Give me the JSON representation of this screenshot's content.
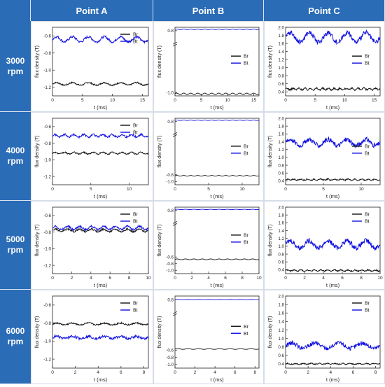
{
  "columns": [
    "Point A",
    "Point B",
    "Point C"
  ],
  "rows": [
    {
      "label": [
        "3000",
        "rpm"
      ]
    },
    {
      "label": [
        "4000",
        "rpm"
      ]
    },
    {
      "label": [
        "5000",
        "rpm"
      ]
    },
    {
      "label": [
        "6000",
        "rpm"
      ]
    }
  ],
  "chart_data": [
    {
      "type": "line",
      "point": "Point A",
      "speed": "3000 rpm",
      "xlabel": "t (ms)",
      "ylabel": "flux density (T)",
      "xlim": [
        0,
        16
      ],
      "ylim": [
        -1.3,
        -0.5
      ],
      "xticks": [
        0,
        5,
        10,
        15
      ],
      "yticks": [
        -0.6,
        -0.8,
        -1.0,
        -1.2
      ],
      "ytick_labels": [
        "-0.6",
        "-0.8",
        "-1.0",
        "-1.2"
      ],
      "legend": "top-right",
      "series": [
        {
          "name": "Br",
          "color": "#111111",
          "mean": -1.16,
          "amplitude": 0.015,
          "cycles": 6,
          "noise": 0.008
        },
        {
          "name": "Bt",
          "color": "#1010e0",
          "mean": -0.64,
          "amplitude": 0.03,
          "cycles": 6,
          "noise": 0.014
        }
      ]
    },
    {
      "type": "line",
      "point": "Point B",
      "speed": "3000 rpm",
      "xlabel": "t (ms)",
      "ylabel": "flux density (T)",
      "xlim": [
        0,
        16
      ],
      "ylim": [
        -1.1,
        0.9
      ],
      "xticks": [
        0,
        5,
        10,
        15
      ],
      "yticks": [
        0.8,
        -1.0
      ],
      "ytick_labels": [
        "0.8",
        "-1.0"
      ],
      "axis_break": true,
      "legend": "middle-right",
      "series": [
        {
          "name": "Br",
          "color": "#111111",
          "mean": -1.04,
          "amplitude": 0.02,
          "cycles": 12,
          "noise": 0.0
        },
        {
          "name": "Bt",
          "color": "#1010e0",
          "mean": 0.84,
          "amplitude": 0.008,
          "cycles": 12,
          "noise": 0.0
        }
      ]
    },
    {
      "type": "line",
      "point": "Point C",
      "speed": "3000 rpm",
      "xlabel": "t (ms)",
      "ylabel": "flux density (T)",
      "xlim": [
        0,
        16
      ],
      "ylim": [
        0.3,
        2.0
      ],
      "xticks": [
        0,
        5,
        10,
        15
      ],
      "yticks": [
        2.0,
        1.8,
        1.6,
        1.4,
        1.2,
        1.0,
        0.8,
        0.6,
        0.4
      ],
      "ytick_labels": [
        "2.0",
        "1.8",
        "1.6",
        "1.4",
        "1.2",
        "1.0",
        "0.8",
        "0.6",
        "0.4"
      ],
      "legend": "middle-right",
      "series": [
        {
          "name": "Br",
          "color": "#111111",
          "mean": 0.47,
          "amplitude": 0.02,
          "cycles": 16,
          "noise": 0.02
        },
        {
          "name": "Bt",
          "color": "#1010e0",
          "mean": 1.75,
          "amplitude": 0.12,
          "cycles": 5,
          "noise": 0.06
        }
      ]
    },
    {
      "type": "line",
      "point": "Point A",
      "speed": "4000 rpm",
      "xlabel": "t (ms)",
      "ylabel": "flux density (T)",
      "xlim": [
        0,
        12.5
      ],
      "ylim": [
        -1.3,
        -0.5
      ],
      "xticks": [
        0,
        5,
        10
      ],
      "yticks": [
        -0.6,
        -0.8,
        -1.0,
        -1.2
      ],
      "ytick_labels": [
        "-0.6",
        "-0.8",
        "-1.0",
        "-1.2"
      ],
      "legend": "top-right",
      "series": [
        {
          "name": "Br",
          "color": "#111111",
          "mean": -0.92,
          "amplitude": 0.01,
          "cycles": 10,
          "noise": 0.008
        },
        {
          "name": "Bt",
          "color": "#1010e0",
          "mean": -0.71,
          "amplitude": 0.015,
          "cycles": 10,
          "noise": 0.012
        }
      ]
    },
    {
      "type": "line",
      "point": "Point B",
      "speed": "4000 rpm",
      "xlabel": "t (ms)",
      "ylabel": "flux density (T)",
      "xlim": [
        0,
        12.5
      ],
      "ylim": [
        -1.1,
        0.9
      ],
      "xticks": [
        0,
        5,
        10
      ],
      "yticks": [
        0.8,
        -0.8,
        -1.0
      ],
      "ytick_labels": [
        "0.8",
        "-0.8",
        "-1.0"
      ],
      "axis_break": true,
      "legend": "middle-right",
      "series": [
        {
          "name": "Br",
          "color": "#111111",
          "mean": -0.83,
          "amplitude": 0.012,
          "cycles": 12,
          "noise": 0.0
        },
        {
          "name": "Bt",
          "color": "#1010e0",
          "mean": 0.84,
          "amplitude": 0.006,
          "cycles": 12,
          "noise": 0.0
        }
      ]
    },
    {
      "type": "line",
      "point": "Point C",
      "speed": "4000 rpm",
      "xlabel": "t (ms)",
      "ylabel": "flux density (T)",
      "xlim": [
        0,
        12.5
      ],
      "ylim": [
        0.3,
        2.0
      ],
      "xticks": [
        0,
        5,
        10
      ],
      "yticks": [
        2.0,
        1.8,
        1.6,
        1.4,
        1.2,
        1.0,
        0.8,
        0.6,
        0.4
      ],
      "ytick_labels": [
        "2.0",
        "1.8",
        "1.6",
        "1.4",
        "1.2",
        "1.0",
        "0.8",
        "0.6",
        "0.4"
      ],
      "legend": "middle-right",
      "series": [
        {
          "name": "Br",
          "color": "#111111",
          "mean": 0.43,
          "amplitude": 0.015,
          "cycles": 14,
          "noise": 0.015
        },
        {
          "name": "Bt",
          "color": "#1010e0",
          "mean": 1.38,
          "amplitude": 0.08,
          "cycles": 5,
          "noise": 0.06
        }
      ]
    },
    {
      "type": "line",
      "point": "Point A",
      "speed": "5000 rpm",
      "xlabel": "t (ms)",
      "ylabel": "flux density (T)",
      "xlim": [
        0,
        10
      ],
      "ylim": [
        -1.3,
        -0.5
      ],
      "xticks": [
        0,
        2,
        4,
        6,
        8,
        10
      ],
      "yticks": [
        -0.6,
        -0.8,
        -1.0,
        -1.2
      ],
      "ytick_labels": [
        "-0.6",
        "-0.8",
        "-1.0",
        "-1.2"
      ],
      "legend": "top-right",
      "series": [
        {
          "name": "Br",
          "color": "#111111",
          "mean": -0.78,
          "amplitude": 0.015,
          "cycles": 8,
          "noise": 0.01
        },
        {
          "name": "Bt",
          "color": "#1010e0",
          "mean": -0.75,
          "amplitude": 0.02,
          "cycles": 8,
          "noise": 0.012
        }
      ]
    },
    {
      "type": "line",
      "point": "Point B",
      "speed": "5000 rpm",
      "xlabel": "t (ms)",
      "ylabel": "flux density (T)",
      "xlim": [
        0,
        10
      ],
      "ylim": [
        -1.1,
        0.9
      ],
      "xticks": [
        0,
        2,
        4,
        6,
        8,
        10
      ],
      "yticks": [
        0.8,
        -0.6,
        -0.8,
        -1.0
      ],
      "ytick_labels": [
        "0.8",
        "-0.6",
        "-0.8",
        "-1.0"
      ],
      "axis_break": true,
      "legend": "middle-right",
      "series": [
        {
          "name": "Br",
          "color": "#111111",
          "mean": -0.67,
          "amplitude": 0.012,
          "cycles": 10,
          "noise": 0.0
        },
        {
          "name": "Bt",
          "color": "#1010e0",
          "mean": 0.83,
          "amplitude": 0.006,
          "cycles": 10,
          "noise": 0.0
        }
      ]
    },
    {
      "type": "line",
      "point": "Point C",
      "speed": "5000 rpm",
      "xlabel": "t (ms)",
      "ylabel": "flux density (T)",
      "xlim": [
        0,
        10
      ],
      "ylim": [
        0.3,
        2.0
      ],
      "xticks": [
        0,
        2,
        4,
        6,
        8,
        10
      ],
      "yticks": [
        2.0,
        1.8,
        1.6,
        1.4,
        1.2,
        1.0,
        0.8,
        0.6,
        0.4
      ],
      "ytick_labels": [
        "2.0",
        "1.8",
        "1.6",
        "1.4",
        "1.2",
        "1.0",
        "0.8",
        "0.6",
        "0.4"
      ],
      "legend": "top-right",
      "series": [
        {
          "name": "Br",
          "color": "#111111",
          "mean": 0.38,
          "amplitude": 0.015,
          "cycles": 14,
          "noise": 0.015
        },
        {
          "name": "Bt",
          "color": "#1010e0",
          "mean": 1.05,
          "amplitude": 0.09,
          "cycles": 5,
          "noise": 0.06
        }
      ]
    },
    {
      "type": "line",
      "point": "Point A",
      "speed": "6000 rpm",
      "xlabel": "t (ms)",
      "ylabel": "flux density (T)",
      "xlim": [
        0,
        8.4
      ],
      "ylim": [
        -1.3,
        -0.5
      ],
      "xticks": [
        0,
        2,
        4,
        6,
        8
      ],
      "yticks": [
        -0.6,
        -0.8,
        -1.0,
        -1.2
      ],
      "ytick_labels": [
        "-0.6",
        "-0.8",
        "-1.0",
        "-1.2"
      ],
      "legend": "top-right",
      "series": [
        {
          "name": "Br",
          "color": "#111111",
          "mean": -0.81,
          "amplitude": 0.01,
          "cycles": 6,
          "noise": 0.008
        },
        {
          "name": "Bt",
          "color": "#1010e0",
          "mean": -0.96,
          "amplitude": 0.012,
          "cycles": 6,
          "noise": 0.014
        }
      ]
    },
    {
      "type": "line",
      "point": "Point B",
      "speed": "6000 rpm",
      "xlabel": "t (ms)",
      "ylabel": "flux density (T)",
      "xlim": [
        0,
        8.4
      ],
      "ylim": [
        -1.1,
        0.9
      ],
      "xticks": [
        0,
        2,
        4,
        6,
        8
      ],
      "yticks": [
        0.8,
        -0.6,
        -0.8,
        -1.0
      ],
      "ytick_labels": [
        "0.8",
        "-0.6",
        "-0.8",
        "-1.0"
      ],
      "axis_break": true,
      "legend": "middle-right",
      "series": [
        {
          "name": "Br",
          "color": "#111111",
          "mean": -0.57,
          "amplitude": 0.01,
          "cycles": 8,
          "noise": 0.0
        },
        {
          "name": "Bt",
          "color": "#1010e0",
          "mean": 0.8,
          "amplitude": 0.004,
          "cycles": 8,
          "noise": 0.0
        }
      ]
    },
    {
      "type": "line",
      "point": "Point C",
      "speed": "6000 rpm",
      "xlabel": "t (ms)",
      "ylabel": "flux density (T)",
      "xlim": [
        0,
        8.4
      ],
      "ylim": [
        0.3,
        2.0
      ],
      "xticks": [
        0,
        2,
        4,
        6,
        8
      ],
      "yticks": [
        2.0,
        1.8,
        1.6,
        1.4,
        1.2,
        1.0,
        0.8,
        0.6,
        0.4
      ],
      "ytick_labels": [
        "2.0",
        "1.8",
        "1.6",
        "1.4",
        "1.2",
        "1.0",
        "0.8",
        "0.6",
        "0.4"
      ],
      "legend": "top-right",
      "series": [
        {
          "name": "Br",
          "color": "#111111",
          "mean": 0.4,
          "amplitude": 0.01,
          "cycles": 12,
          "noise": 0.012
        },
        {
          "name": "Bt",
          "color": "#1010e0",
          "mean": 0.83,
          "amplitude": 0.06,
          "cycles": 4,
          "noise": 0.05
        }
      ]
    }
  ]
}
